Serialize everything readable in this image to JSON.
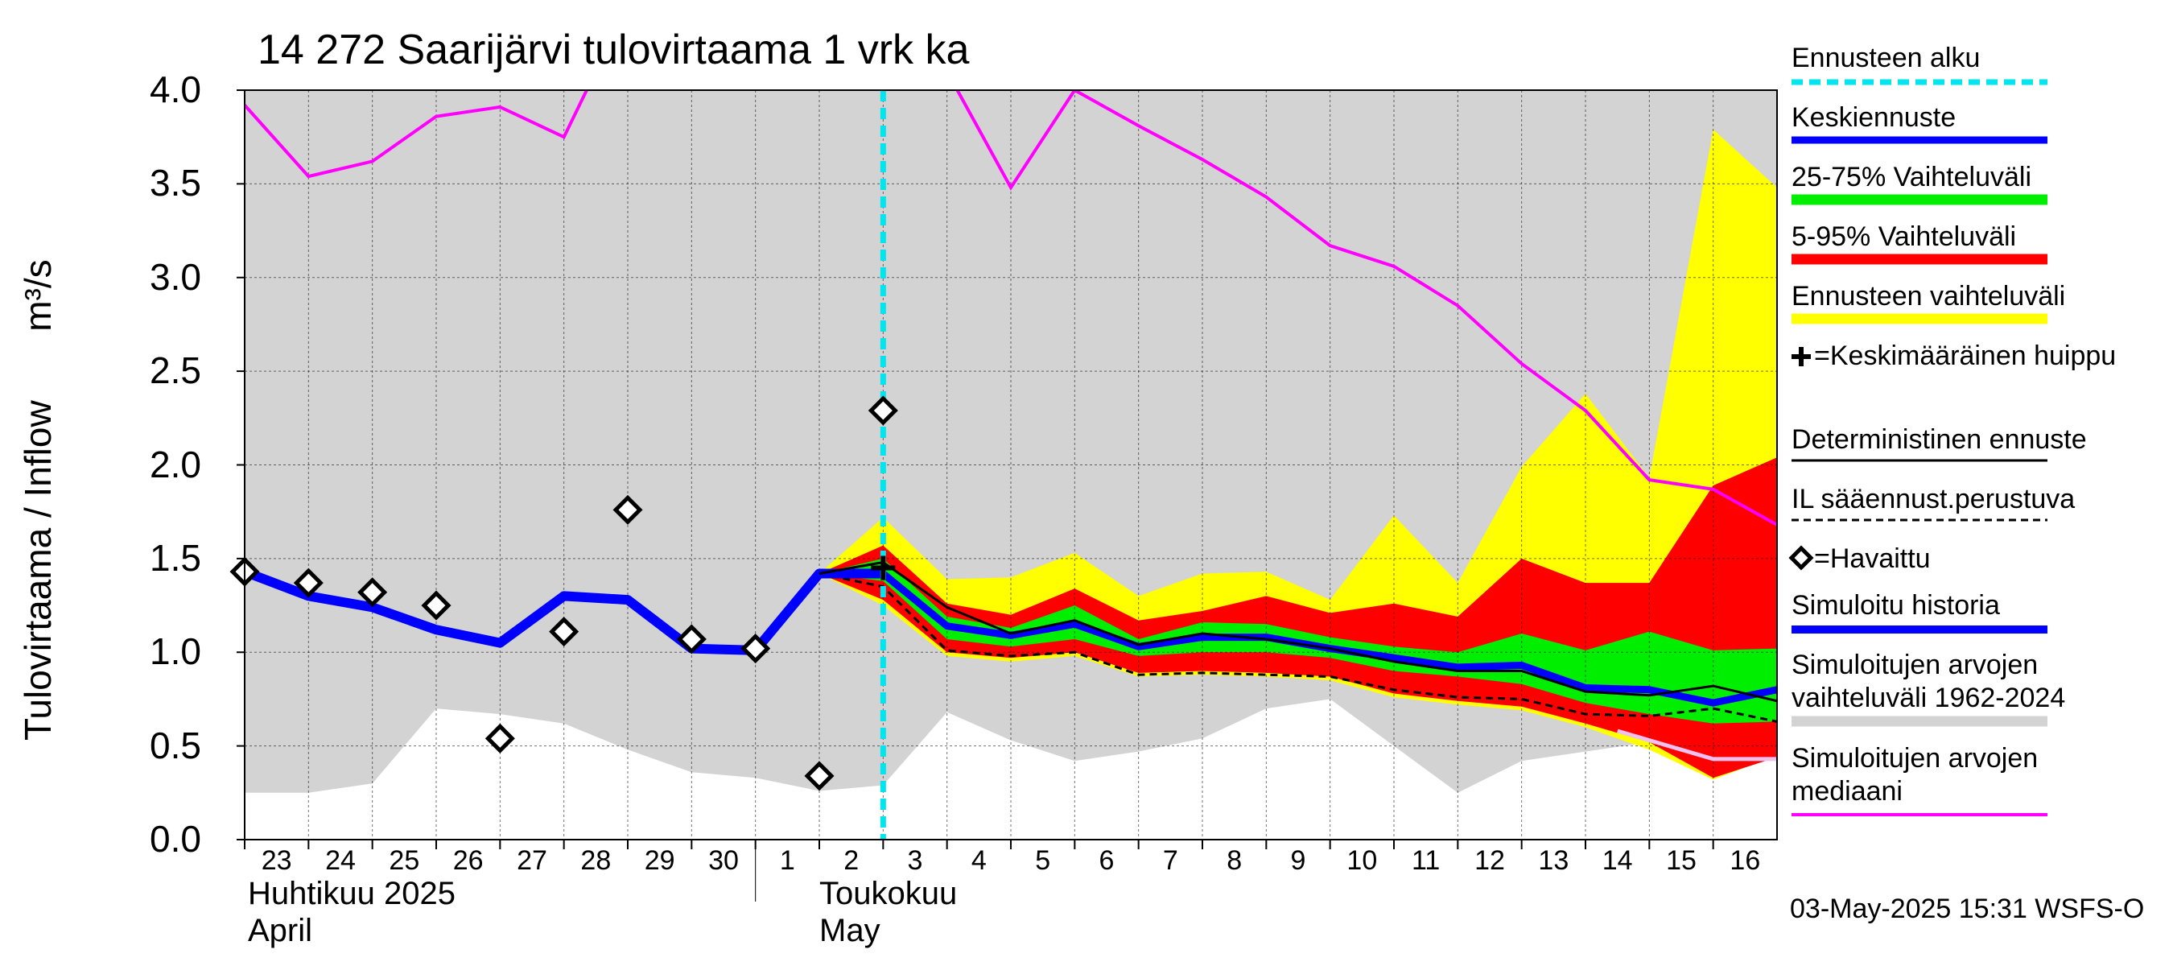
{
  "chart_data": {
    "type": "area",
    "title": "14 272 Saarijärvi tulovirtaama 1 vrk ka",
    "ylabel_main": "Tulovirtaama / Inflow",
    "ylabel_unit": "m³/s",
    "ylim": [
      0,
      4
    ],
    "yticks": [
      {
        "v": 0.0,
        "label": "0.0"
      },
      {
        "v": 0.5,
        "label": "0.5"
      },
      {
        "v": 1.0,
        "label": "1.0"
      },
      {
        "v": 1.5,
        "label": "1.5"
      },
      {
        "v": 2.0,
        "label": "2.0"
      },
      {
        "v": 2.5,
        "label": "2.5"
      },
      {
        "v": 3.0,
        "label": "3.0"
      },
      {
        "v": 3.5,
        "label": "3.5"
      },
      {
        "v": 4.0,
        "label": "4.0"
      }
    ],
    "xlim": [
      0,
      24
    ],
    "day_labels": [
      "23",
      "24",
      "25",
      "26",
      "27",
      "28",
      "29",
      "30",
      "1",
      "2",
      "3",
      "4",
      "5",
      "6",
      "7",
      "8",
      "9",
      "10",
      "11",
      "12",
      "13",
      "14",
      "15",
      "16"
    ],
    "month_labels": {
      "april_fi": "Huhtikuu  2025",
      "april_en": "April",
      "may_fi": "Toukokuu",
      "may_en": "May"
    },
    "forecast_start_x": 10,
    "sim_range": {
      "x": [
        0,
        1,
        2,
        3,
        4,
        5,
        6,
        7,
        8,
        9,
        10,
        11,
        12,
        13,
        14,
        15,
        16,
        17,
        18,
        19,
        20,
        21,
        22,
        23,
        24
      ],
      "low": [
        0.25,
        0.25,
        0.3,
        0.7,
        0.67,
        0.62,
        0.48,
        0.36,
        0.33,
        0.26,
        0.29,
        0.68,
        0.53,
        0.42,
        0.47,
        0.54,
        0.7,
        0.75,
        0.5,
        0.25,
        0.42,
        0.47,
        0.52,
        0.52,
        0.5
      ],
      "high": [
        4.0,
        4.0,
        4.0,
        4.0,
        4.0,
        4.0,
        4.0,
        4.0,
        4.0,
        4.0,
        4.0,
        4.0,
        4.0,
        4.0,
        4.0,
        4.0,
        4.0,
        4.0,
        4.0,
        4.0,
        4.0,
        4.0,
        4.0,
        4.0,
        4.0
      ]
    },
    "median": {
      "x": [
        0,
        1,
        2,
        3,
        4,
        5,
        5.5,
        11,
        12,
        13,
        14,
        15,
        16,
        17,
        18,
        19,
        20,
        21,
        22,
        23,
        24
      ],
      "y": [
        3.92,
        3.54,
        3.62,
        3.86,
        3.91,
        3.75,
        4.1,
        4.1,
        3.48,
        4.0,
        3.81,
        3.63,
        3.43,
        3.17,
        3.06,
        2.85,
        2.54,
        2.29,
        1.92,
        1.87,
        1.68
      ]
    },
    "ens_range": {
      "x": [
        9,
        10,
        11,
        12,
        13,
        14,
        15,
        16,
        17,
        18,
        19,
        20,
        21,
        22,
        23,
        24
      ],
      "low": [
        1.42,
        1.25,
        0.98,
        0.95,
        0.98,
        0.87,
        0.88,
        0.87,
        0.85,
        0.76,
        0.72,
        0.69,
        0.6,
        0.48,
        0.32,
        0.45
      ],
      "high": [
        1.42,
        1.72,
        1.39,
        1.4,
        1.53,
        1.3,
        1.42,
        1.43,
        1.28,
        1.73,
        1.37,
        1.99,
        2.38,
        1.93,
        3.79,
        3.48
      ]
    },
    "p5_95": {
      "x": [
        9,
        10,
        11,
        12,
        13,
        14,
        15,
        16,
        17,
        18,
        19,
        20,
        21,
        22,
        23,
        24
      ],
      "low": [
        1.42,
        1.28,
        1.0,
        0.97,
        1.0,
        0.89,
        0.9,
        0.89,
        0.87,
        0.78,
        0.74,
        0.71,
        0.62,
        0.52,
        0.33,
        0.44
      ],
      "high": [
        1.42,
        1.57,
        1.26,
        1.2,
        1.34,
        1.17,
        1.22,
        1.3,
        1.21,
        1.26,
        1.19,
        1.5,
        1.37,
        1.37,
        1.89,
        2.04
      ]
    },
    "p25_75": {
      "x": [
        9,
        10,
        11,
        12,
        13,
        14,
        15,
        16,
        17,
        18,
        19,
        20,
        21,
        22,
        23,
        24
      ],
      "low": [
        1.42,
        1.38,
        1.07,
        1.03,
        1.07,
        0.98,
        1.0,
        1.0,
        0.97,
        0.9,
        0.87,
        0.83,
        0.73,
        0.67,
        0.62,
        0.63
      ],
      "high": [
        1.42,
        1.5,
        1.19,
        1.13,
        1.25,
        1.07,
        1.16,
        1.15,
        1.08,
        1.03,
        1.0,
        1.1,
        1.01,
        1.11,
        1.01,
        1.02
      ]
    },
    "simulated_history": {
      "x": [
        0,
        1,
        2,
        3,
        4,
        5,
        6,
        7,
        8,
        9,
        10
      ],
      "y": [
        1.43,
        1.3,
        1.24,
        1.12,
        1.05,
        1.3,
        1.28,
        1.02,
        1.01,
        1.42,
        1.42
      ]
    },
    "mean_forecast": {
      "x": [
        9,
        10,
        11,
        12,
        13,
        14,
        15,
        16,
        17,
        18,
        19,
        20,
        21,
        22,
        23,
        24
      ],
      "y": [
        1.42,
        1.42,
        1.14,
        1.09,
        1.15,
        1.03,
        1.08,
        1.08,
        1.02,
        0.97,
        0.92,
        0.93,
        0.81,
        0.8,
        0.73,
        0.8
      ]
    },
    "deterministic": {
      "x": [
        9,
        10,
        11,
        12,
        13,
        14,
        15,
        16,
        17,
        18,
        19,
        20,
        21,
        22,
        23,
        24
      ],
      "y": [
        1.42,
        1.48,
        1.24,
        1.1,
        1.17,
        1.04,
        1.1,
        1.07,
        1.02,
        0.95,
        0.9,
        0.9,
        0.79,
        0.77,
        0.82,
        0.74
      ]
    },
    "il_forecast": {
      "x": [
        9,
        10,
        11,
        12,
        13,
        14,
        15,
        16,
        17,
        18,
        19,
        20,
        21,
        22,
        23,
        24
      ],
      "y": [
        1.42,
        1.35,
        1.01,
        0.98,
        1.0,
        0.88,
        0.89,
        0.88,
        0.87,
        0.8,
        0.76,
        0.75,
        0.67,
        0.66,
        0.7,
        0.63
      ]
    },
    "median_tail": {
      "x": [
        21.5,
        22,
        23,
        24
      ],
      "y": [
        0.58,
        0.53,
        0.43,
        0.43
      ]
    },
    "observed": {
      "x": [
        0,
        1,
        2,
        3,
        4,
        5,
        6,
        7,
        8,
        9,
        10
      ],
      "y": [
        1.43,
        1.37,
        1.32,
        1.25,
        0.54,
        1.11,
        1.76,
        1.07,
        1.02,
        0.34,
        2.29
      ]
    },
    "mean_peak": {
      "x": 10,
      "y": 1.45
    },
    "colors": {
      "sim_range": "#d3d3d3",
      "median": "#ff00ff",
      "ens": "#ffff00",
      "p5_95": "#ff0000",
      "p25_75": "#00ee00",
      "history": "#0000ff",
      "forecast_start": "#00e5ee",
      "grid": "#000000",
      "observed": "#000000",
      "median_tail": "#f0c0f0"
    }
  },
  "legend": {
    "forecast_start": "Ennusteen alku",
    "mean_forecast": "Keskiennuste",
    "p25_75": "25-75% Vaihteluväli",
    "p5_95": "5-95% Vaihteluväli",
    "ens_range": "Ennusteen vaihteluväli",
    "mean_peak": "=Keskimääräinen huippu",
    "deterministic": "Deterministinen ennuste",
    "il_forecast": "IL sääennust.perustuva",
    "observed": "=Havaittu",
    "sim_history": "Simuloitu historia",
    "sim_range_line1": "Simuloitujen arvojen",
    "sim_range_line2": "vaihteluväli 1962-2024",
    "sim_median_line1": "Simuloitujen arvojen",
    "sim_median_line2": "mediaani"
  },
  "footer": "03-May-2025 15:31 WSFS-O"
}
